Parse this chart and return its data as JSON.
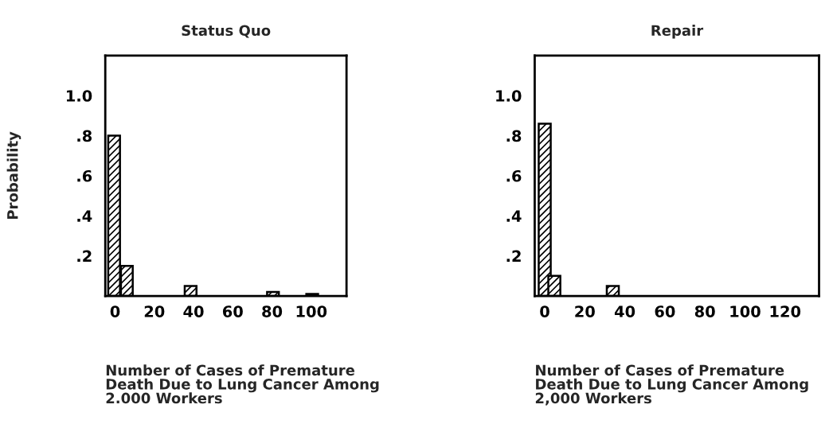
{
  "chart_data": [
    {
      "type": "bar",
      "title": "Status Quo",
      "xlabel": "Number of Cases of Premature\nDeath Due to Lung Cancer Among\n2.000 Workers",
      "ylabel": "Probability",
      "x": [
        -0.5,
        6,
        38.5,
        80.5,
        100.5
      ],
      "values": [
        0.8,
        0.15,
        0.05,
        0.02,
        0.01
      ],
      "color": "#000000",
      "xlim": [
        -5,
        118
      ],
      "xticks": [
        0,
        20,
        40,
        60,
        80,
        100
      ],
      "ylim": [
        0,
        1.2
      ],
      "yticks": [
        {
          "value": 0.2,
          "label": ".2"
        },
        {
          "value": 0.4,
          "label": ".4"
        },
        {
          "value": 0.6,
          "label": ".6"
        },
        {
          "value": 0.8,
          "label": ".8"
        },
        {
          "value": 1.0,
          "label": "1.0"
        }
      ],
      "grid": false
    },
    {
      "type": "bar",
      "title": "Repair",
      "xlabel": "Number of Cases of Premature\nDeath Due to Lung Cancer Among\n2,000 Workers",
      "x": [
        0,
        4.8,
        34
      ],
      "values": [
        0.86,
        0.1,
        0.05
      ],
      "color": "#000000",
      "xlim": [
        -5,
        137
      ],
      "xticks": [
        0,
        20,
        40,
        60,
        80,
        100,
        120
      ],
      "ylim": [
        0,
        1.2
      ],
      "yticks": [
        {
          "value": 0.2,
          "label": ".2"
        },
        {
          "value": 0.4,
          "label": ".4"
        },
        {
          "value": 0.6,
          "label": ".6"
        },
        {
          "value": 0.8,
          "label": ".8"
        },
        {
          "value": 1.0,
          "label": "1.0"
        }
      ],
      "grid": false
    }
  ]
}
